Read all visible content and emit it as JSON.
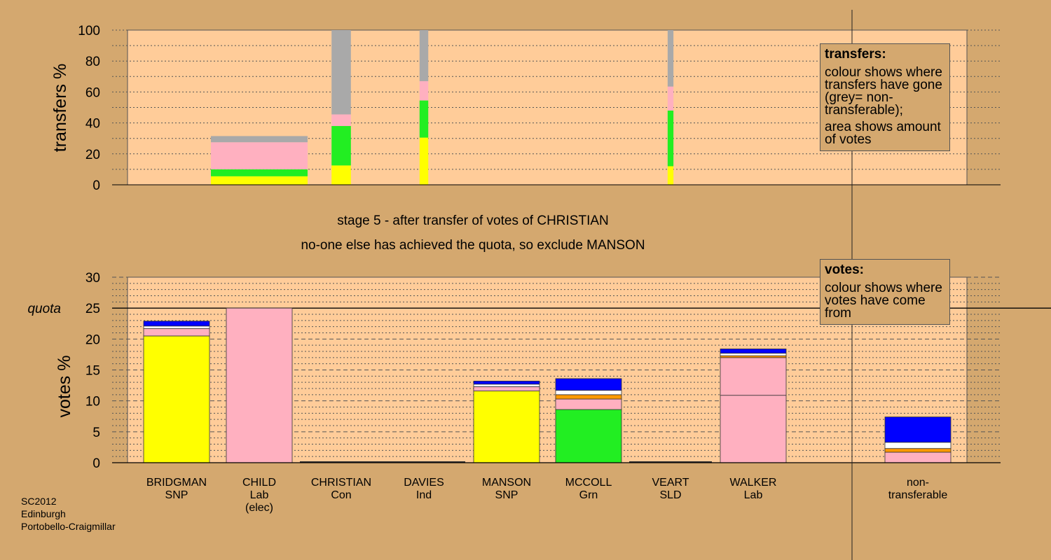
{
  "stage": {
    "line1": "stage 5 - after transfer of votes of CHRISTIAN",
    "line2": "no-one else has achieved the quota, so exclude MANSON"
  },
  "transfers_legend": {
    "title": "transfers:",
    "p1": "colour shows where transfers have gone (grey= non-transferable);",
    "p2": "area shows amount of votes"
  },
  "votes_legend": {
    "title": "votes:",
    "p1": "colour shows where votes have come from"
  },
  "footer": {
    "line1": "SC2012",
    "line2": "Edinburgh",
    "line3": "Portobello-Craigmillar"
  },
  "colors": {
    "background": "#d4a86f",
    "plot_bg": "#ffcc99",
    "SNP": "#ffff00",
    "Lab": "#ffb0c0",
    "Grn": "#22ee22",
    "Con": "#0000ff",
    "SLD": "#ff9900",
    "Ind": "#ffffff",
    "non-transferable": "#a9a9a9"
  },
  "chart_data": [
    {
      "type": "bar",
      "stacked": true,
      "ylabel": "transfers %",
      "ylim": [
        0,
        100
      ],
      "yticks": [
        0,
        20,
        40,
        60,
        80,
        100
      ],
      "categories": [
        "BRIDGMAN",
        "CHILD",
        "CHRISTIAN",
        "DAVIES",
        "MANSON",
        "MCCOLL",
        "VEART",
        "WALKER"
      ],
      "bars": [
        {
          "candidate": "CHILD",
          "width_share": 1.0,
          "segments": [
            {
              "color": "SNP",
              "value": 5.5
            },
            {
              "color": "Grn",
              "value": 4.5
            },
            {
              "color": "Lab",
              "value": 17.5
            },
            {
              "color": "non-transferable",
              "value": 4.0
            }
          ]
        },
        {
          "candidate": "CHRISTIAN",
          "width_share": 0.2,
          "segments": [
            {
              "color": "SNP",
              "value": 12.5
            },
            {
              "color": "Grn",
              "value": 25.5
            },
            {
              "color": "Lab",
              "value": 7.5
            },
            {
              "color": "non-transferable",
              "value": 54.5
            }
          ]
        },
        {
          "candidate": "DAVIES",
          "width_share": 0.09,
          "segments": [
            {
              "color": "SNP",
              "value": 30.5
            },
            {
              "color": "Grn",
              "value": 24.0
            },
            {
              "color": "Lab",
              "value": 12.5
            },
            {
              "color": "non-transferable",
              "value": 33.0
            }
          ]
        },
        {
          "candidate": "VEART",
          "width_share": 0.06,
          "segments": [
            {
              "color": "SNP",
              "value": 12.0
            },
            {
              "color": "Grn",
              "value": 36.0
            },
            {
              "color": "Lab",
              "value": 15.5
            },
            {
              "color": "non-transferable",
              "value": 36.5
            }
          ]
        }
      ]
    },
    {
      "type": "bar",
      "stacked": true,
      "ylabel": "votes %",
      "ylim": [
        0,
        30
      ],
      "yticks": [
        0,
        5,
        10,
        15,
        20,
        25,
        30
      ],
      "quota": {
        "label": "quota",
        "value": 25
      },
      "categories": [
        {
          "name": "BRIDGMAN",
          "party": "SNP",
          "note": ""
        },
        {
          "name": "CHILD",
          "party": "Lab",
          "note": "(elec)"
        },
        {
          "name": "CHRISTIAN",
          "party": "Con",
          "note": ""
        },
        {
          "name": "DAVIES",
          "party": "Ind",
          "note": ""
        },
        {
          "name": "MANSON",
          "party": "SNP",
          "note": ""
        },
        {
          "name": "MCCOLL",
          "party": "Grn",
          "note": ""
        },
        {
          "name": "VEART",
          "party": "SLD",
          "note": ""
        },
        {
          "name": "WALKER",
          "party": "Lab",
          "note": ""
        },
        {
          "name": "non-",
          "party": "transferable",
          "note": ""
        }
      ],
      "bars": [
        {
          "candidate": "BRIDGMAN",
          "segments": [
            {
              "color": "SNP",
              "value": 20.5
            },
            {
              "color": "Lab",
              "value": 1.2
            },
            {
              "color": "Ind",
              "value": 0.4
            },
            {
              "color": "Con",
              "value": 0.8
            }
          ]
        },
        {
          "candidate": "CHILD",
          "segments": [
            {
              "color": "Lab",
              "value": 25.0
            }
          ]
        },
        {
          "candidate": "CHRISTIAN",
          "segments": []
        },
        {
          "candidate": "DAVIES",
          "segments": []
        },
        {
          "candidate": "MANSON",
          "segments": [
            {
              "color": "SNP",
              "value": 11.6
            },
            {
              "color": "Lab",
              "value": 0.7
            },
            {
              "color": "Ind",
              "value": 0.4
            },
            {
              "color": "Con",
              "value": 0.5
            }
          ]
        },
        {
          "candidate": "MCCOLL",
          "segments": [
            {
              "color": "Grn",
              "value": 8.6
            },
            {
              "color": "Lab",
              "value": 1.7
            },
            {
              "color": "SLD",
              "value": 0.7
            },
            {
              "color": "Ind",
              "value": 0.7
            },
            {
              "color": "Con",
              "value": 1.9
            }
          ]
        },
        {
          "candidate": "VEART",
          "segments": []
        },
        {
          "candidate": "WALKER",
          "segments": [
            {
              "color": "Lab",
              "value": 10.9
            },
            {
              "color": "Lab",
              "value": 6.1
            },
            {
              "color": "SLD",
              "value": 0.3
            },
            {
              "color": "Ind",
              "value": 0.4
            },
            {
              "color": "Con",
              "value": 0.7
            }
          ]
        },
        {
          "candidate": "non-transferable",
          "segments": [
            {
              "color": "Lab",
              "value": 1.7
            },
            {
              "color": "SLD",
              "value": 0.6
            },
            {
              "color": "Ind",
              "value": 1.0
            },
            {
              "color": "Con",
              "value": 4.1
            }
          ]
        }
      ]
    }
  ]
}
